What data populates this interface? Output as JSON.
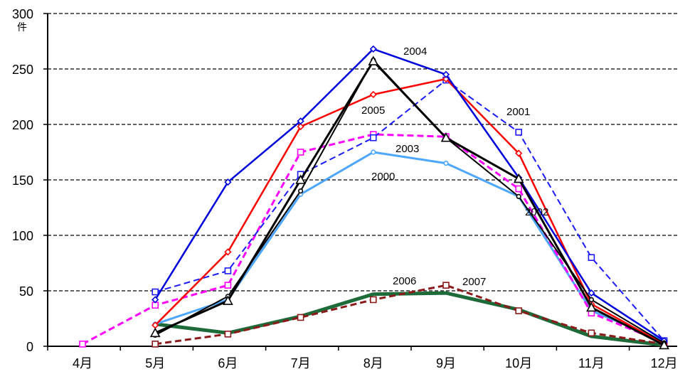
{
  "chart_data": {
    "type": "line",
    "unit_label": "件",
    "categories": [
      "4月",
      "5月",
      "6月",
      "7月",
      "8月",
      "9月",
      "10月",
      "11月",
      "12月"
    ],
    "ylim": [
      0,
      300
    ],
    "yticks": [
      0,
      50,
      100,
      150,
      200,
      250,
      300
    ],
    "grid": "horizontal-dashed",
    "series": [
      {
        "name": "2000",
        "color": "#4da6ff",
        "dash": "solid",
        "marker": "circle",
        "values": [
          null,
          20,
          42,
          137,
          175,
          165,
          135,
          32,
          5
        ]
      },
      {
        "name": "2001",
        "color": "#1a1aff",
        "dash": "dashed",
        "marker": "square",
        "values": [
          null,
          49,
          68,
          155,
          188,
          240,
          193,
          80,
          5
        ]
      },
      {
        "name": "2002",
        "color": "#000000",
        "dash": "solid",
        "marker": "circle",
        "values": [
          null,
          10,
          45,
          140,
          258,
          188,
          135,
          42,
          3
        ]
      },
      {
        "name": "2003",
        "color": "#ff00ff",
        "dash": "dashed",
        "marker": "square",
        "values": [
          2,
          37,
          55,
          175,
          191,
          189,
          142,
          30,
          3
        ]
      },
      {
        "name": "2004",
        "color": "#0000dd",
        "dash": "solid",
        "marker": "diamond",
        "values": [
          null,
          42,
          148,
          203,
          268,
          245,
          152,
          48,
          5
        ]
      },
      {
        "name": "2005",
        "color": "#ff0000",
        "dash": "solid",
        "marker": "diamond",
        "values": [
          null,
          19,
          85,
          198,
          227,
          241,
          174,
          38,
          2
        ]
      },
      {
        "name": "2006",
        "color": "#1e6b3a",
        "dash": "solid",
        "marker": "none",
        "values": [
          null,
          20,
          12,
          27,
          47,
          48,
          33,
          9,
          1
        ]
      },
      {
        "name": "2007",
        "color": "#8b1a1a",
        "dash": "dashed",
        "marker": "square",
        "values": [
          null,
          2,
          11,
          26,
          42,
          55,
          32,
          12,
          2
        ]
      }
    ],
    "extra_series": [
      {
        "color": "#000000",
        "dash": "solid",
        "marker": "triangle",
        "values": [
          null,
          12,
          41,
          150,
          257,
          188,
          151,
          35,
          1
        ]
      }
    ]
  }
}
